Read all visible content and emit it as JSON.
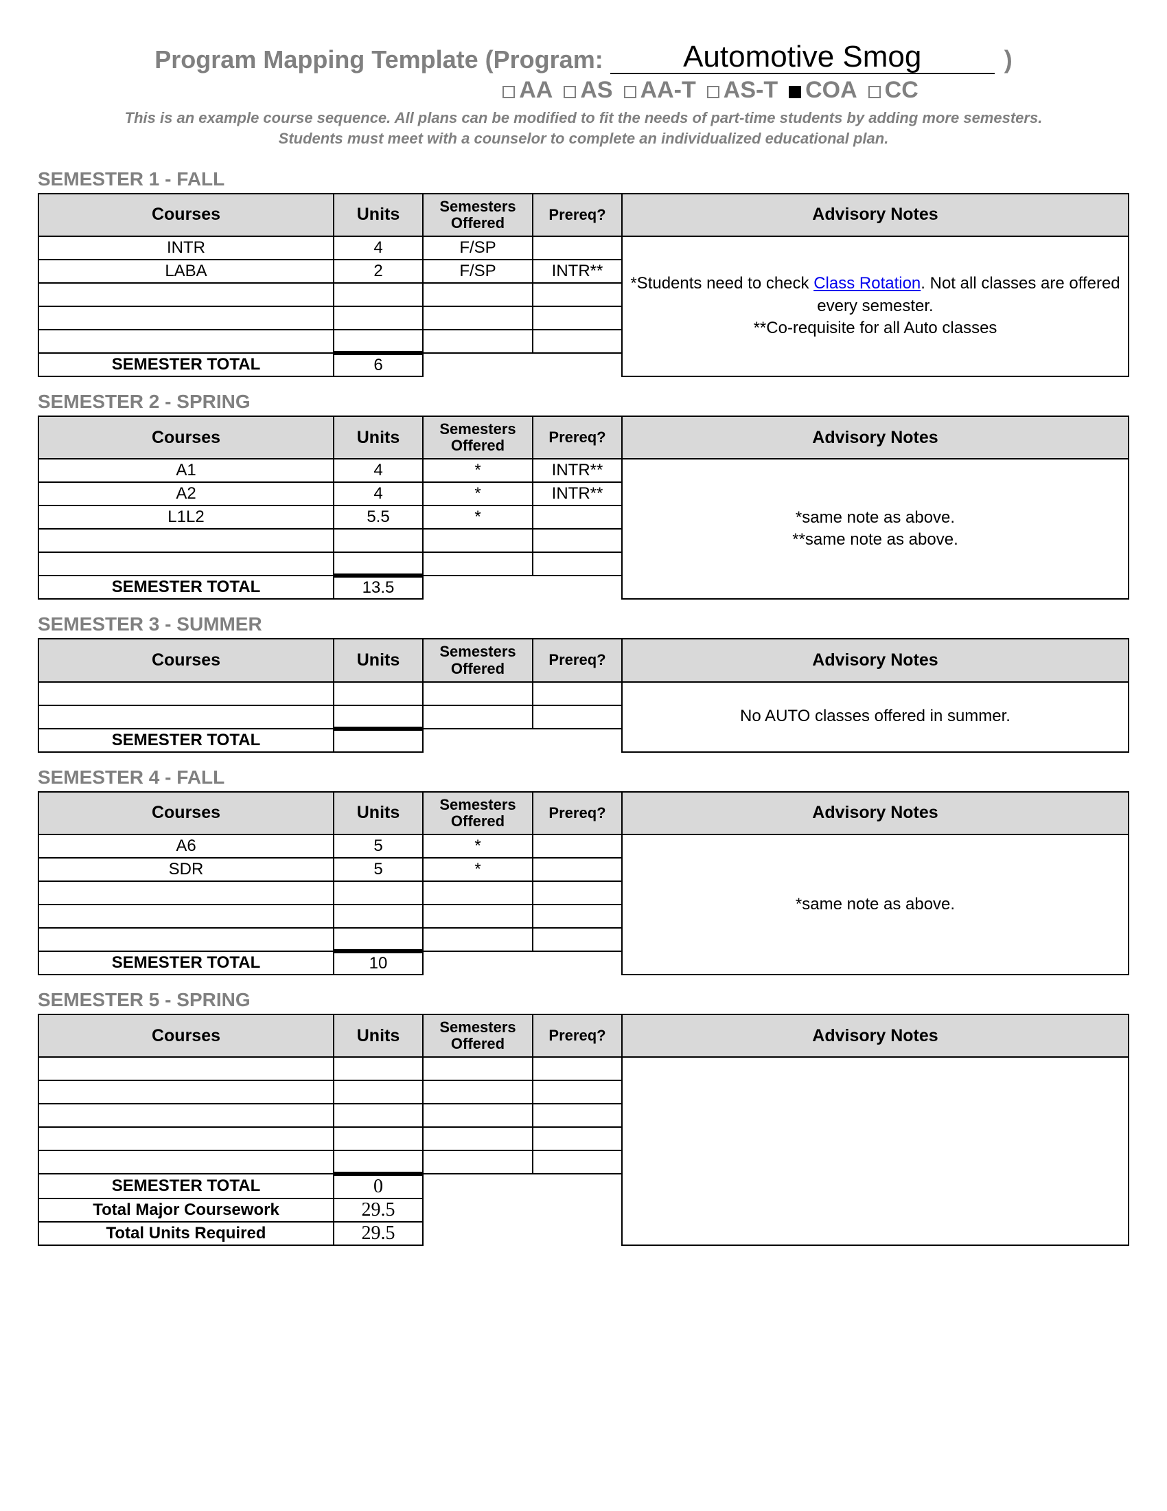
{
  "header": {
    "title_prefix": "Program Mapping Template (Program:",
    "program_name": "Automotive Smog",
    "title_suffix": ")",
    "degree_options": [
      {
        "label": "AA",
        "checked": false
      },
      {
        "label": "AS",
        "checked": false
      },
      {
        "label": "AA-T",
        "checked": false
      },
      {
        "label": "AS-T",
        "checked": false
      },
      {
        "label": "COA",
        "checked": true
      },
      {
        "label": "CC",
        "checked": false
      }
    ],
    "disclaimer_line1": "This is an example course sequence.  All plans can be modified to fit the needs of part-time students by adding more semesters.",
    "disclaimer_line2": "Students must meet with a counselor to complete an individualized educational plan."
  },
  "columns": {
    "courses": "Courses",
    "units": "Units",
    "offered": "Semesters Offered",
    "prereq": "Prereq?",
    "advisory": "Advisory Notes"
  },
  "labels": {
    "semester_total": "SEMESTER TOTAL",
    "total_major": "Total Major Coursework",
    "total_required": "Total Units Required"
  },
  "link_text": "Class Rotation",
  "semesters": [
    {
      "heading": "SEMESTER 1 - FALL",
      "rows": [
        {
          "course": "INTR",
          "units": "4",
          "offered": "F/SP",
          "prereq": ""
        },
        {
          "course": "LABA",
          "units": "2",
          "offered": "F/SP",
          "prereq": "INTR**"
        },
        {
          "course": "",
          "units": "",
          "offered": "",
          "prereq": ""
        },
        {
          "course": "",
          "units": "",
          "offered": "",
          "prereq": ""
        },
        {
          "course": "",
          "units": "",
          "offered": "",
          "prereq": ""
        }
      ],
      "total": "6",
      "advisory_pre": "*Students need to check ",
      "advisory_post": ". Not all classes are offered every semester.\n**Co-requisite for all Auto classes",
      "has_link": true
    },
    {
      "heading": "SEMESTER 2 - SPRING",
      "rows": [
        {
          "course": "A1",
          "units": "4",
          "offered": "*",
          "prereq": "INTR**"
        },
        {
          "course": "A2",
          "units": "4",
          "offered": "*",
          "prereq": "INTR**"
        },
        {
          "course": "L1L2",
          "units": "5.5",
          "offered": "*",
          "prereq": ""
        },
        {
          "course": "",
          "units": "",
          "offered": "",
          "prereq": ""
        },
        {
          "course": "",
          "units": "",
          "offered": "",
          "prereq": ""
        }
      ],
      "total": "13.5",
      "advisory": "*same note as above.\n**same note as above."
    },
    {
      "heading": "SEMESTER 3 - SUMMER",
      "rows": [
        {
          "course": "",
          "units": "",
          "offered": "",
          "prereq": ""
        },
        {
          "course": "",
          "units": "",
          "offered": "",
          "prereq": ""
        }
      ],
      "total": "",
      "advisory": "No AUTO classes offered in summer."
    },
    {
      "heading": "SEMESTER 4 - FALL",
      "rows": [
        {
          "course": "A6",
          "units": "5",
          "offered": "*",
          "prereq": ""
        },
        {
          "course": "SDR",
          "units": "5",
          "offered": "*",
          "prereq": ""
        },
        {
          "course": "",
          "units": "",
          "offered": "",
          "prereq": ""
        },
        {
          "course": "",
          "units": "",
          "offered": "",
          "prereq": ""
        },
        {
          "course": "",
          "units": "",
          "offered": "",
          "prereq": ""
        }
      ],
      "total": "10",
      "advisory": "*same note as above."
    },
    {
      "heading": "SEMESTER 5 - SPRING",
      "rows": [
        {
          "course": "",
          "units": "",
          "offered": "",
          "prereq": ""
        },
        {
          "course": "",
          "units": "",
          "offered": "",
          "prereq": ""
        },
        {
          "course": "",
          "units": "",
          "offered": "",
          "prereq": ""
        },
        {
          "course": "",
          "units": "",
          "offered": "",
          "prereq": ""
        },
        {
          "course": "",
          "units": "",
          "offered": "",
          "prereq": ""
        }
      ],
      "total": "0",
      "total_serif": true,
      "advisory": "",
      "extra_totals": [
        {
          "label_key": "total_major",
          "value": "29.5"
        },
        {
          "label_key": "total_required",
          "value": "29.5"
        }
      ]
    }
  ]
}
